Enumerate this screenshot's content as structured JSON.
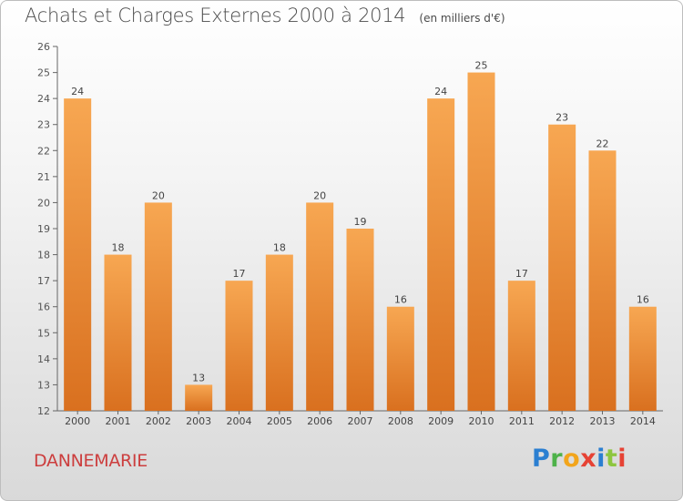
{
  "header": {
    "title": "Achats et Charges Externes 2000 à 2014",
    "unit": "(en milliers d'€)"
  },
  "footer": {
    "commune": "DANNEMARIE",
    "logo_text": "Proxiti"
  },
  "colors": {
    "bar_light": "#f7a752",
    "bar_dark": "#d9701f",
    "commune": "#cc3e3e"
  },
  "chart_data": {
    "type": "bar",
    "title": "Achats et Charges Externes 2000 à 2014",
    "subtitle": "(en milliers d'€)",
    "xlabel": "",
    "ylabel": "",
    "categories": [
      "2000",
      "2001",
      "2002",
      "2003",
      "2004",
      "2005",
      "2006",
      "2007",
      "2008",
      "2009",
      "2010",
      "2011",
      "2012",
      "2013",
      "2014"
    ],
    "values": [
      24,
      18,
      20,
      13,
      17,
      18,
      20,
      19,
      16,
      24,
      25,
      17,
      23,
      22,
      16
    ],
    "ylim": [
      12,
      26
    ],
    "yticks": [
      12,
      13,
      14,
      15,
      16,
      17,
      18,
      19,
      20,
      21,
      22,
      23,
      24,
      25,
      26
    ],
    "grid": false,
    "legend": "none"
  }
}
